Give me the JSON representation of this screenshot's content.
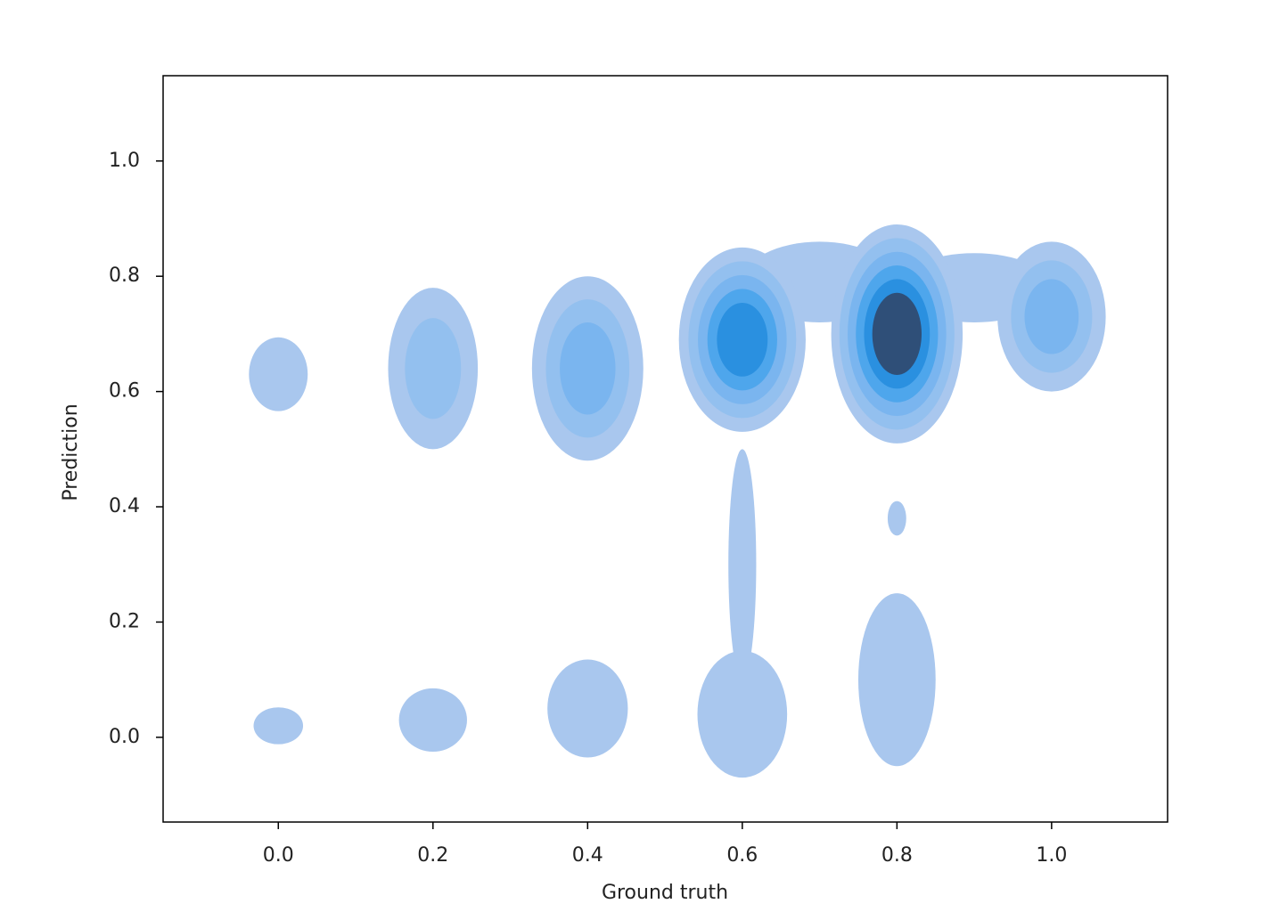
{
  "chart_data": {
    "type": "kde",
    "x_label": "Ground truth",
    "y_label": "Prediction",
    "xlim": [
      -0.149,
      1.15
    ],
    "ylim": [
      -0.147,
      1.148
    ],
    "xticks": [
      {
        "value": 0,
        "label": "0.0"
      },
      0.2,
      0.4,
      0.6,
      0.8,
      {
        "value": 1,
        "label": "1.0"
      }
    ],
    "yticks": [
      {
        "value": 0,
        "label": "0.0"
      },
      0.2,
      0.4,
      0.6,
      0.8,
      {
        "value": 1,
        "label": "1.0"
      }
    ],
    "colors": [
      "#a9c7ee",
      "#93c0ef",
      "#7ab5ef",
      "#4ea6ec",
      "#2a90e0",
      "#2f4f78"
    ],
    "blobs": [
      {
        "x": 0.0,
        "y": 0.63,
        "rx": 0.038,
        "ry": 0.064,
        "level": 1
      },
      {
        "x": 0.0,
        "y": 0.02,
        "rx": 0.032,
        "ry": 0.032,
        "level": 1
      },
      {
        "x": 0.2,
        "y": 0.64,
        "rx": 0.058,
        "ry": 0.14,
        "level": 2
      },
      {
        "x": 0.2,
        "y": 0.03,
        "rx": 0.044,
        "ry": 0.055,
        "level": 1
      },
      {
        "x": 0.4,
        "y": 0.64,
        "rx": 0.072,
        "ry": 0.16,
        "level": 3
      },
      {
        "x": 0.4,
        "y": 0.05,
        "rx": 0.052,
        "ry": 0.085,
        "level": 1
      },
      {
        "x": 0.7,
        "y": 0.79,
        "rx": 0.1,
        "ry": 0.07,
        "level": 1
      },
      {
        "x": 0.9,
        "y": 0.78,
        "rx": 0.1,
        "ry": 0.06,
        "level": 1
      },
      {
        "x": 0.6,
        "y": 0.69,
        "rx": 0.082,
        "ry": 0.16,
        "level": 5
      },
      {
        "x": 0.6,
        "y": 0.3,
        "rx": 0.018,
        "ry": 0.2,
        "level": 1
      },
      {
        "x": 0.6,
        "y": 0.04,
        "rx": 0.058,
        "ry": 0.11,
        "level": 1
      },
      {
        "x": 0.8,
        "y": 0.7,
        "rx": 0.085,
        "ry": 0.19,
        "level": 6
      },
      {
        "x": 0.8,
        "y": 0.38,
        "rx": 0.012,
        "ry": 0.03,
        "level": 1
      },
      {
        "x": 0.8,
        "y": 0.1,
        "rx": 0.05,
        "ry": 0.15,
        "level": 1
      },
      {
        "x": 1.0,
        "y": 0.73,
        "rx": 0.07,
        "ry": 0.13,
        "level": 3
      }
    ]
  }
}
